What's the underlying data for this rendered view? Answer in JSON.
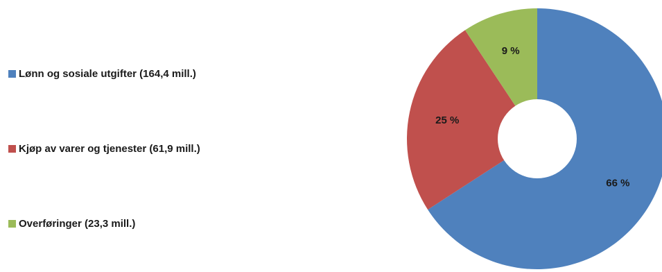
{
  "chart_data": {
    "type": "pie",
    "variant": "doughnut",
    "title": "",
    "categories": [
      "Lønn og sosiale utgifter (164,4 mill.)",
      "Kjøp av varer og tjenester (61,9 mill.)",
      "Overføringer (23,3 mill.)"
    ],
    "values": [
      164.4,
      61.9,
      23.3
    ],
    "percent_labels": [
      "66 %",
      "25 %",
      "9 %"
    ],
    "colors": [
      "#4f81bd",
      "#c0504d",
      "#9bbb59"
    ],
    "start_angle": "12 o'clock",
    "direction": "clockwise",
    "legend_placement": "left"
  }
}
